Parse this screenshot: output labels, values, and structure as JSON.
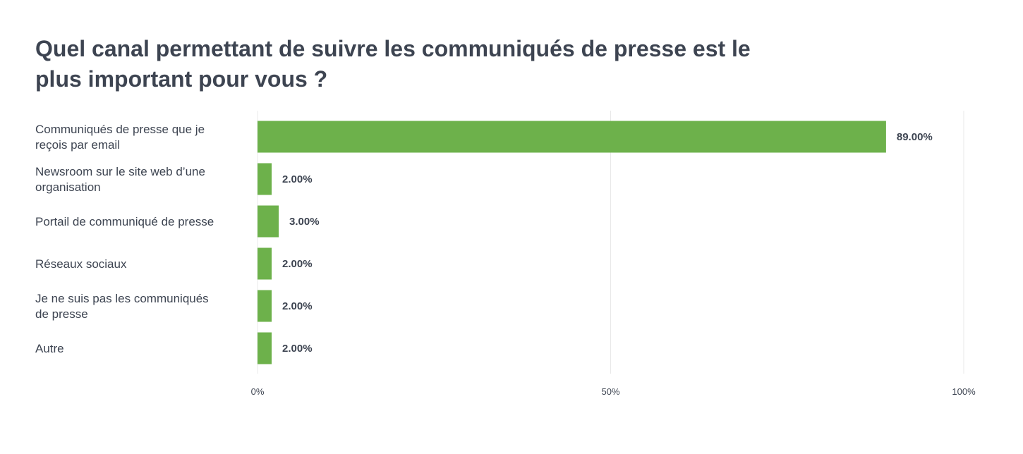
{
  "chart_data": {
    "type": "bar",
    "orientation": "horizontal",
    "title": "Quel canal permettant de suivre les communiqués de presse est le plus important pour vous ?",
    "categories": [
      [
        "Communiqués de presse que je",
        "reçois par email"
      ],
      [
        "Newsroom sur le site web d’une",
        "organisation"
      ],
      [
        "Portail de communiqué de presse"
      ],
      [
        "Réseaux sociaux"
      ],
      [
        "Je ne suis pas les communiqués",
        "de presse"
      ],
      [
        "Autre"
      ]
    ],
    "values": [
      89,
      2,
      3,
      2,
      2,
      2
    ],
    "value_labels": [
      "89.00%",
      "2.00%",
      "3.00%",
      "2.00%",
      "2.00%",
      "2.00%"
    ],
    "xlim": [
      0,
      100
    ],
    "ticks": [
      0,
      50,
      100
    ],
    "tick_labels": [
      "0%",
      "50%",
      "100%"
    ],
    "grid": true,
    "bar_color": "#6db14b",
    "gridline_color": "#e8e8e8",
    "text_color": "#3d4451"
  }
}
